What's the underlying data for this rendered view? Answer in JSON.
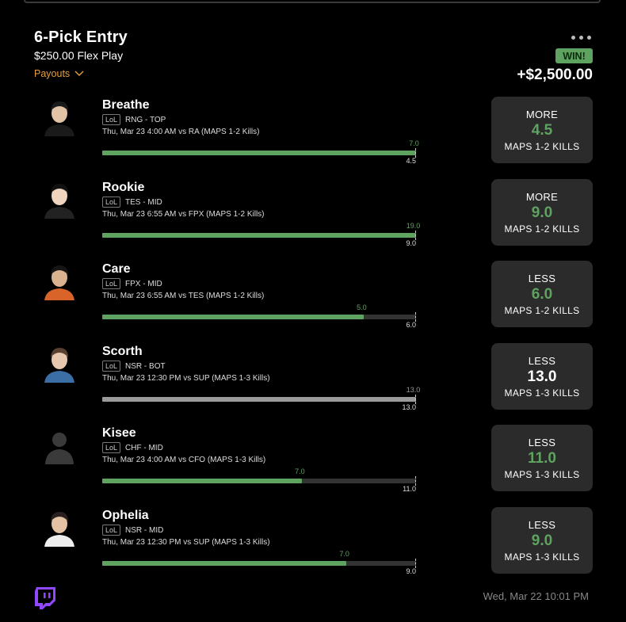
{
  "entry": {
    "title": "6-Pick Entry",
    "subtitle": "$250.00 Flex Play",
    "payouts_label": "Payouts",
    "result_badge": "WIN!",
    "payout_amount": "+$2,500.00",
    "timestamp": "Wed, Mar 22 10:01 PM"
  },
  "colors": {
    "accent_green": "#5ea35f",
    "payouts_orange": "#e6a03b",
    "card_bg": "#2b2b2b"
  },
  "league_tag": "LoL",
  "picks": [
    {
      "name": "Breathe",
      "team_pos": "RNG - TOP",
      "game": "Thu, Mar 23 4:00 AM  vs RA (MAPS 1-2 Kills)",
      "actual": "7.0",
      "line": "4.5",
      "fill_fraction": 1.0,
      "direction": "MORE",
      "line_value": "4.5",
      "stat": "MAPS 1-2 KILLS",
      "hit": true
    },
    {
      "name": "Rookie",
      "team_pos": "TES - MID",
      "game": "Thu, Mar 23 6:55 AM  vs FPX (MAPS 1-2 Kills)",
      "actual": "19.0",
      "line": "9.0",
      "fill_fraction": 1.0,
      "direction": "MORE",
      "line_value": "9.0",
      "stat": "MAPS 1-2 KILLS",
      "hit": true
    },
    {
      "name": "Care",
      "team_pos": "FPX - MID",
      "game": "Thu, Mar 23 6:55 AM  vs TES (MAPS 1-2 Kills)",
      "actual": "5.0",
      "line": "6.0",
      "fill_fraction": 0.833,
      "direction": "LESS",
      "line_value": "6.0",
      "stat": "MAPS 1-2 KILLS",
      "hit": true
    },
    {
      "name": "Scorth",
      "team_pos": "NSR - BOT",
      "game": "Thu, Mar 23 12:30 PM  vs SUP (MAPS 1-3 Kills)",
      "actual": "13.0",
      "line": "13.0",
      "fill_fraction": 1.0,
      "direction": "LESS",
      "line_value": "13.0",
      "stat": "MAPS 1-3 KILLS",
      "hit": false
    },
    {
      "name": "Kisee",
      "team_pos": "CHF - MID",
      "game": "Thu, Mar 23 4:00 AM  vs CFO (MAPS 1-3 Kills)",
      "actual": "7.0",
      "line": "11.0",
      "fill_fraction": 0.636,
      "direction": "LESS",
      "line_value": "11.0",
      "stat": "MAPS 1-3 KILLS",
      "hit": true
    },
    {
      "name": "Ophelia",
      "team_pos": "NSR - MID",
      "game": "Thu, Mar 23 12:30 PM  vs SUP (MAPS 1-3 Kills)",
      "actual": "7.0",
      "line": "9.0",
      "fill_fraction": 0.778,
      "direction": "LESS",
      "line_value": "9.0",
      "stat": "MAPS 1-3 KILLS",
      "hit": true
    }
  ]
}
